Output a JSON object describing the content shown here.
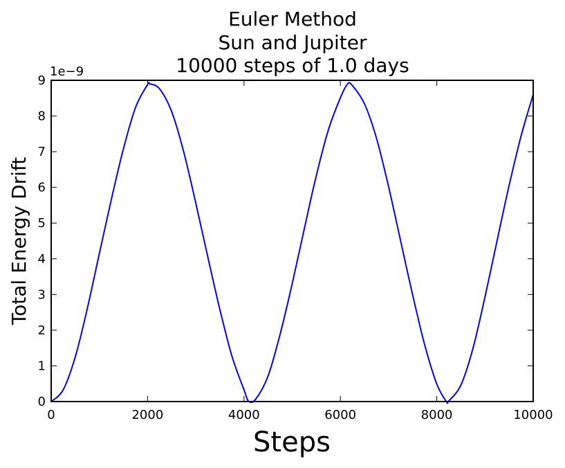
{
  "chart_data": {
    "type": "line",
    "title_lines": [
      "Euler Method",
      "Sun and Jupiter",
      "10000 steps of 1.0 days"
    ],
    "xlabel": "Steps",
    "ylabel": "Total Energy Drift",
    "y_offset_label": "1e−9",
    "xlim": [
      0,
      10000
    ],
    "ylim": [
      0,
      9
    ],
    "x_ticks": [
      "0",
      "2000",
      "4000",
      "6000",
      "8000",
      "10000"
    ],
    "y_ticks": [
      "0",
      "1",
      "2",
      "3",
      "4",
      "5",
      "6",
      "7",
      "8",
      "9"
    ],
    "grid": false,
    "line_color": "#0000ff",
    "series": [
      {
        "x": [
          0,
          250,
          500,
          750,
          1000,
          1250,
          1500,
          1750,
          2000,
          2050,
          2250,
          2500,
          2750,
          3000,
          3250,
          3500,
          3750,
          4000,
          4100,
          4250,
          4500,
          4750,
          5000,
          5250,
          5500,
          5750,
          6000,
          6150,
          6250,
          6500,
          6750,
          7000,
          7250,
          7500,
          7750,
          8000,
          8200,
          8250,
          8500,
          8750,
          9000,
          9250,
          9500,
          9750,
          10000
        ],
        "y": [
          0,
          0.33,
          1.25,
          2.61,
          4.15,
          5.67,
          7.09,
          8.24,
          8.88,
          8.9,
          8.76,
          8.12,
          6.99,
          5.56,
          4.05,
          2.58,
          1.27,
          0.33,
          0.0,
          0.08,
          0.72,
          1.89,
          3.3,
          4.83,
          6.33,
          7.61,
          8.51,
          8.9,
          8.85,
          8.34,
          7.37,
          6.02,
          4.5,
          2.98,
          1.58,
          0.49,
          0.0,
          0.02,
          0.46,
          1.49,
          2.93,
          4.5,
          6.05,
          7.45,
          8.6
        ]
      }
    ]
  }
}
